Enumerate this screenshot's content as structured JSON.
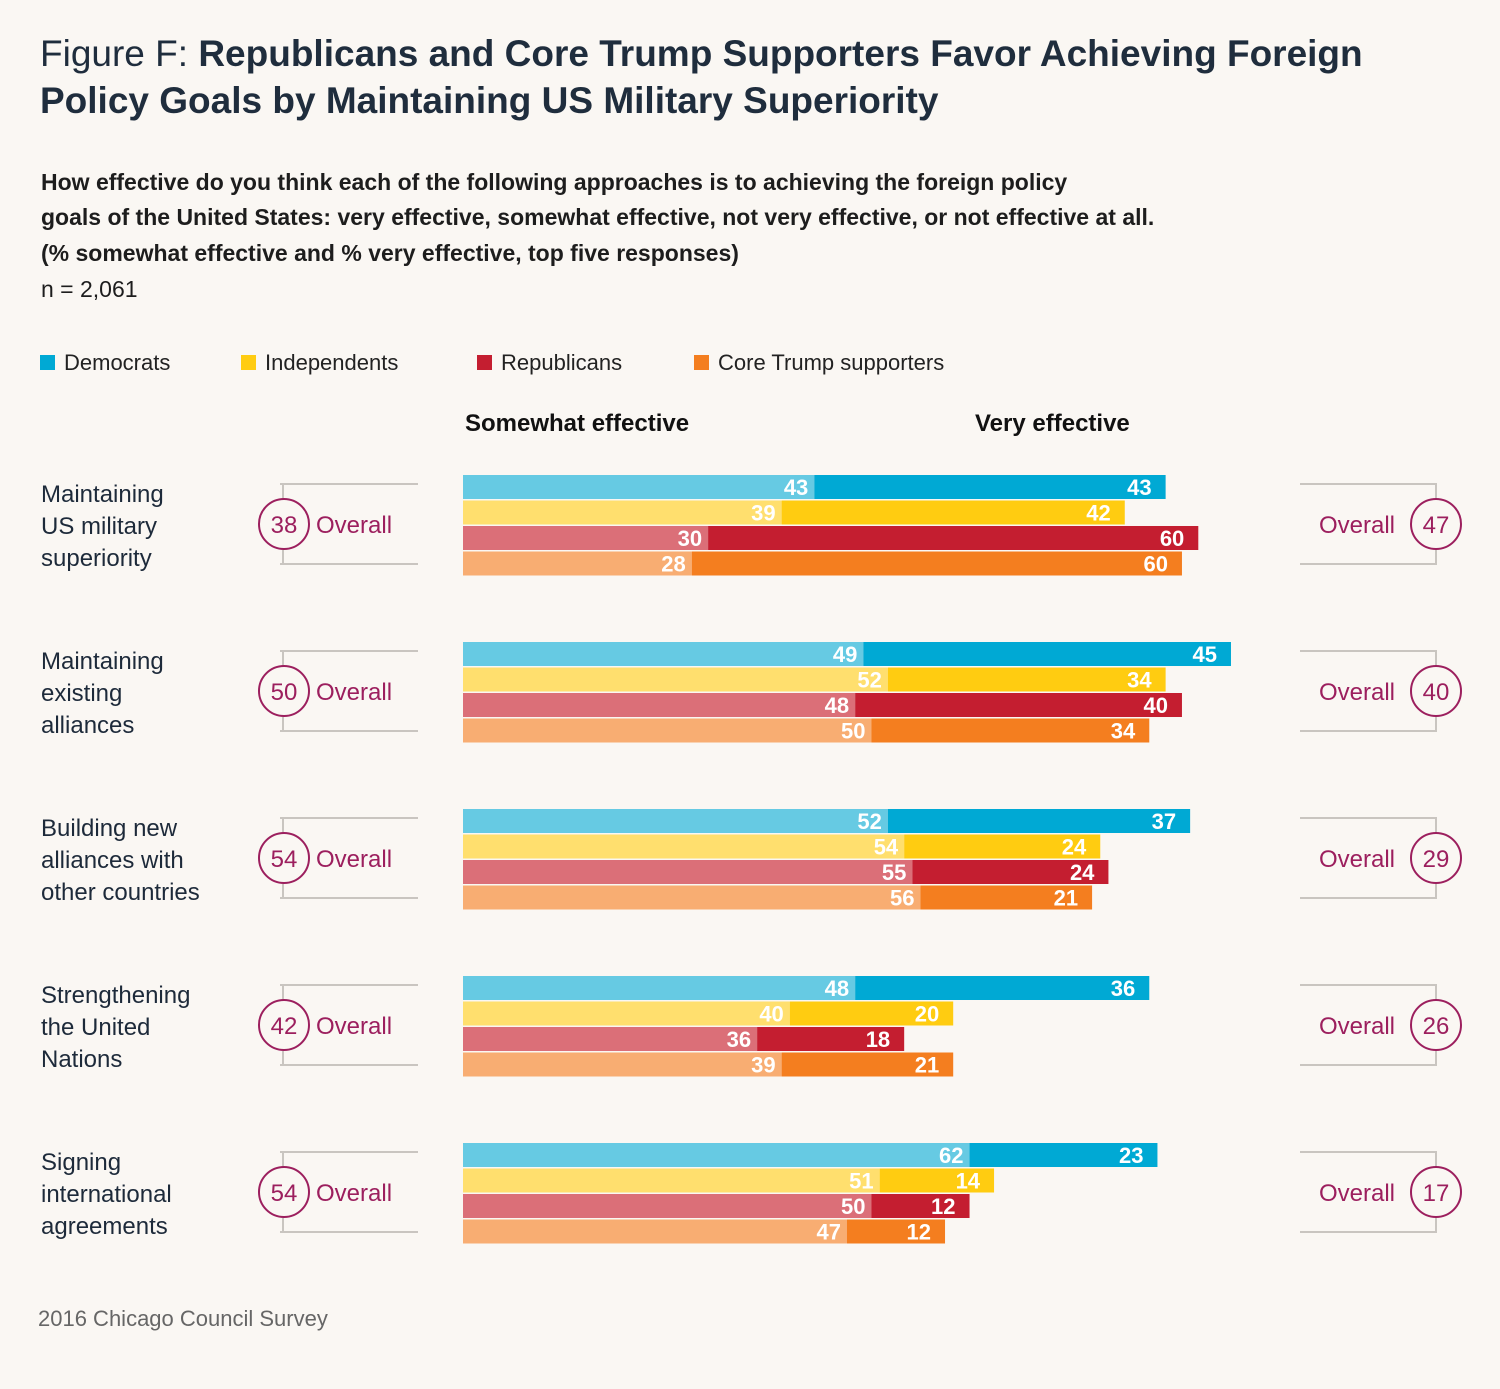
{
  "title_prefix": "Figure F: ",
  "title_main": "Republicans and Core Trump Supporters Favor Achieving Foreign Policy Goals by Maintaining US Military Superiority",
  "question_line1": "How effective do you think each of the following approaches is to achieving the foreign policy",
  "question_line2": "goals of the United States: very effective, somewhat effective, not very effective, or not effective at all.",
  "question_line3": "(% somewhat effective and % very effective, top five responses)",
  "sample_size": "n = 2,061",
  "footer": "2016 Chicago Council Survey",
  "legend": [
    {
      "label": "Democrats",
      "color": "#00a9d4"
    },
    {
      "label": "Independents",
      "color": "#ffcc11"
    },
    {
      "label": "Republicans",
      "color": "#c41e30"
    },
    {
      "label": "Core Trump supporters",
      "color": "#f47e1f"
    }
  ],
  "overall_label": "Overall",
  "accent_color": "#9c1f5e",
  "chart_data": {
    "type": "bar",
    "orientation": "horizontal-stacked",
    "segment_labels": [
      "Somewhat effective",
      "Very effective"
    ],
    "categories": [
      "Maintaining US military superiority",
      "Maintaining existing alliances",
      "Building new alliances with other countries",
      "Strengthening the United Nations",
      "Signing international agreements"
    ],
    "category_lines": [
      [
        "Maintaining",
        "US military",
        "superiority"
      ],
      [
        "Maintaining",
        "existing",
        "alliances"
      ],
      [
        "Building new",
        "alliances with",
        "other countries"
      ],
      [
        "Strengthening",
        "the United",
        "Nations"
      ],
      [
        "Signing",
        "international",
        "agreements"
      ]
    ],
    "overall_somewhat": [
      38,
      50,
      54,
      42,
      54
    ],
    "overall_very": [
      47,
      40,
      29,
      26,
      17
    ],
    "series": [
      {
        "name": "Democrats",
        "light": "#66cae3",
        "dark": "#00a9d4",
        "somewhat": [
          43,
          49,
          52,
          48,
          62
        ],
        "very": [
          43,
          45,
          37,
          36,
          23
        ]
      },
      {
        "name": "Independents",
        "light": "#ffdf6e",
        "dark": "#ffcc11",
        "somewhat": [
          39,
          52,
          54,
          40,
          51
        ],
        "very": [
          42,
          34,
          24,
          20,
          14
        ]
      },
      {
        "name": "Republicans",
        "light": "#db6f78",
        "dark": "#c41e30",
        "somewhat": [
          30,
          48,
          55,
          36,
          50
        ],
        "very": [
          60,
          40,
          24,
          18,
          12
        ]
      },
      {
        "name": "Core Trump supporters",
        "light": "#f8ad72",
        "dark": "#f47e1f",
        "somewhat": [
          28,
          50,
          56,
          39,
          47
        ],
        "very": [
          60,
          34,
          21,
          21,
          12
        ]
      }
    ]
  }
}
